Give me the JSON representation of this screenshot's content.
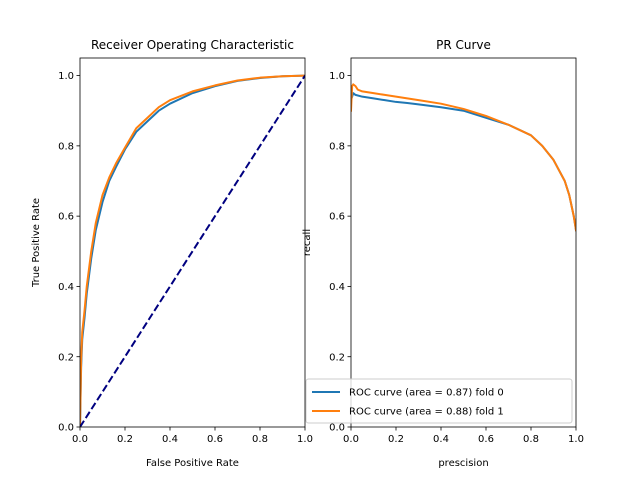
{
  "chart_data": [
    {
      "type": "line",
      "title": "Receiver Operating Characteristic",
      "xlabel": "False Positive Rate",
      "ylabel": "True Positive Rate",
      "xlim": [
        0,
        1
      ],
      "ylim": [
        0,
        1.05
      ],
      "xticks": [
        "0.0",
        "0.2",
        "0.4",
        "0.6",
        "0.8",
        "1.0"
      ],
      "yticks": [
        "0.0",
        "0.2",
        "0.4",
        "0.6",
        "0.8",
        "1.0"
      ],
      "grid": false,
      "series": [
        {
          "color": "#1f77b4",
          "x": [
            0,
            0.005,
            0.01,
            0.02,
            0.03,
            0.05,
            0.07,
            0.1,
            0.13,
            0.16,
            0.2,
            0.25,
            0.3,
            0.35,
            0.4,
            0.5,
            0.6,
            0.7,
            0.8,
            0.9,
            1.0
          ],
          "y": [
            0,
            0.17,
            0.25,
            0.31,
            0.38,
            0.48,
            0.56,
            0.64,
            0.7,
            0.74,
            0.79,
            0.84,
            0.87,
            0.9,
            0.92,
            0.95,
            0.97,
            0.985,
            0.993,
            0.998,
            1.0
          ]
        },
        {
          "color": "#ff7f0e",
          "x": [
            0,
            0.005,
            0.01,
            0.02,
            0.03,
            0.05,
            0.07,
            0.1,
            0.13,
            0.16,
            0.2,
            0.25,
            0.3,
            0.35,
            0.4,
            0.5,
            0.6,
            0.7,
            0.8,
            0.9,
            1.0
          ],
          "y": [
            0,
            0.19,
            0.27,
            0.33,
            0.4,
            0.5,
            0.58,
            0.66,
            0.71,
            0.75,
            0.795,
            0.85,
            0.88,
            0.91,
            0.93,
            0.955,
            0.972,
            0.986,
            0.994,
            0.998,
            1.0
          ]
        },
        {
          "color": "#000080",
          "style": "dashed",
          "x": [
            0,
            1
          ],
          "y": [
            0,
            1
          ]
        }
      ]
    },
    {
      "type": "line",
      "title": "PR Curve",
      "xlabel": "prescision",
      "ylabel": "recall",
      "xlim": [
        0,
        1
      ],
      "ylim": [
        0,
        1.05
      ],
      "xticks": [
        "0.0",
        "0.2",
        "0.4",
        "0.6",
        "0.8",
        "1.0"
      ],
      "yticks": [
        "0.0",
        "0.2",
        "0.4",
        "0.6",
        "0.8",
        "1.0"
      ],
      "grid": false,
      "legend_position": "lower-right",
      "series": [
        {
          "name": "ROC curve (area = 0.87) fold 0",
          "color": "#1f77b4",
          "x": [
            0,
            0.01,
            0.02,
            0.05,
            0.1,
            0.15,
            0.2,
            0.25,
            0.3,
            0.4,
            0.5,
            0.6,
            0.7,
            0.8,
            0.85,
            0.9,
            0.95,
            0.97,
            0.99,
            1.0
          ],
          "y": [
            0.93,
            0.95,
            0.945,
            0.94,
            0.935,
            0.93,
            0.925,
            0.922,
            0.918,
            0.91,
            0.9,
            0.88,
            0.86,
            0.83,
            0.8,
            0.76,
            0.7,
            0.66,
            0.6,
            0.56
          ]
        },
        {
          "name": "ROC curve (area = 0.88) fold 1",
          "color": "#ff7f0e",
          "x": [
            0,
            0.005,
            0.01,
            0.02,
            0.03,
            0.05,
            0.1,
            0.15,
            0.2,
            0.25,
            0.3,
            0.4,
            0.5,
            0.6,
            0.7,
            0.8,
            0.85,
            0.9,
            0.95,
            0.97,
            0.99,
            1.0
          ],
          "y": [
            0.9,
            0.97,
            0.975,
            0.97,
            0.96,
            0.955,
            0.95,
            0.945,
            0.94,
            0.935,
            0.93,
            0.92,
            0.905,
            0.885,
            0.86,
            0.83,
            0.8,
            0.76,
            0.7,
            0.66,
            0.6,
            0.56
          ]
        }
      ]
    }
  ]
}
